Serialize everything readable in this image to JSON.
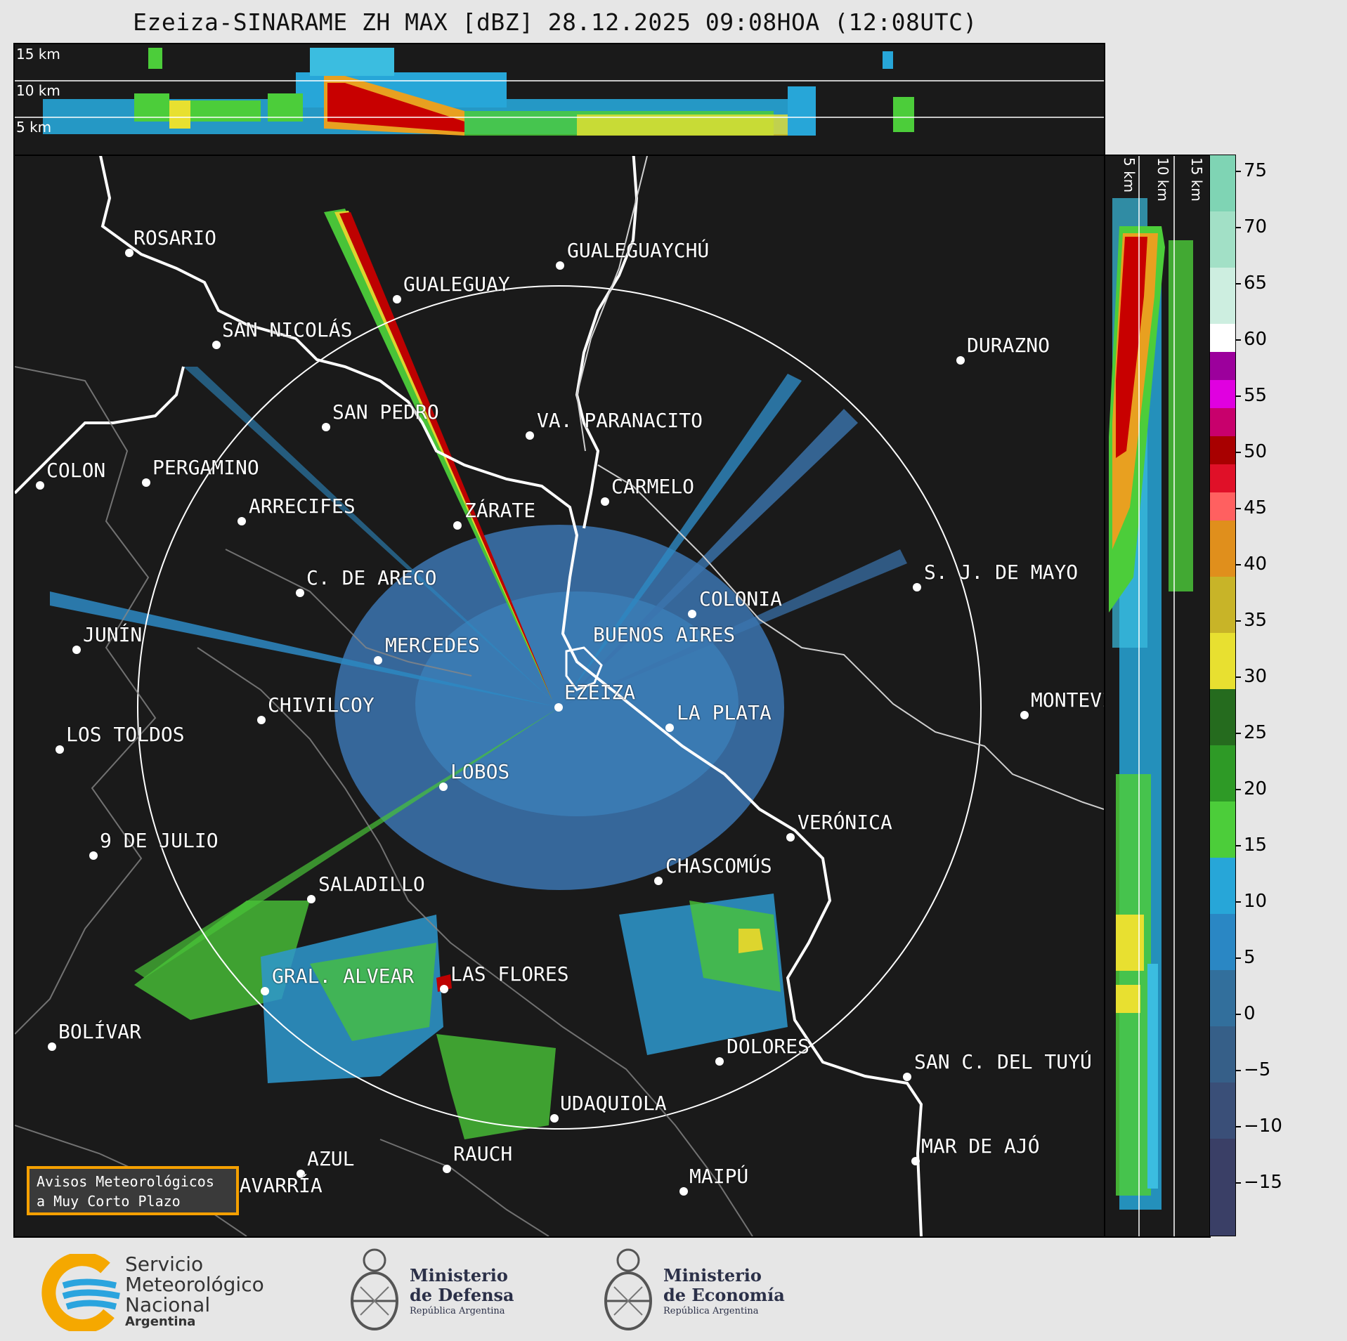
{
  "title": "Ezeiza-SINARAME ZH MAX [dBZ] 28.12.2025 09:08HOA (12:08UTC)",
  "height_labels": {
    "top": [
      "15 km",
      "10 km",
      "5 km"
    ],
    "side": [
      "5 km",
      "10 km",
      "15 km"
    ]
  },
  "colorbar": {
    "ticks": [
      "75",
      "70",
      "65",
      "60",
      "55",
      "50",
      "45",
      "40",
      "35",
      "30",
      "25",
      "20",
      "15",
      "10",
      "5",
      "0",
      "−5",
      "−10",
      "−15"
    ]
  },
  "cities": [
    {
      "name": "ROSARIO"
    },
    {
      "name": "GUALEGUAYCHÚ"
    },
    {
      "name": "GUALEGUAY"
    },
    {
      "name": "SAN NICOLÁS"
    },
    {
      "name": "DURAZNO"
    },
    {
      "name": "SAN PEDRO"
    },
    {
      "name": "VA. PARANACITO"
    },
    {
      "name": "COLON"
    },
    {
      "name": "PERGAMINO"
    },
    {
      "name": "CARMELO"
    },
    {
      "name": "ARRECIFES"
    },
    {
      "name": "ZÁRATE"
    },
    {
      "name": "S. J. DE MAYO"
    },
    {
      "name": "C. DE ARECO"
    },
    {
      "name": "COLONIA"
    },
    {
      "name": "JUNÍN"
    },
    {
      "name": "BUENOS AIRES"
    },
    {
      "name": "MERCEDES"
    },
    {
      "name": "MONTEVIDEO"
    },
    {
      "name": "EZEIZA"
    },
    {
      "name": "CHIVILCOY"
    },
    {
      "name": "LA PLATA"
    },
    {
      "name": "LOS TOLDOS"
    },
    {
      "name": "LOBOS"
    },
    {
      "name": "VERÓNICA"
    },
    {
      "name": "9 DE JULIO"
    },
    {
      "name": "CHASCOMÚS"
    },
    {
      "name": "SALADILLO"
    },
    {
      "name": "GRAL. ALVEAR"
    },
    {
      "name": "LAS FLORES"
    },
    {
      "name": "BOLÍVAR"
    },
    {
      "name": "DOLORES"
    },
    {
      "name": "SAN C. DEL TUYÚ"
    },
    {
      "name": "UDAQUIOLA"
    },
    {
      "name": "MAR DE AJÓ"
    },
    {
      "name": "AZUL"
    },
    {
      "name": "RAUCH"
    },
    {
      "name": "OLAVARRÍA"
    },
    {
      "name": "MAIPÚ"
    }
  ],
  "warning": {
    "line1": "Avisos Meteorológicos",
    "line2": "a Muy Corto Plazo"
  },
  "logos": {
    "smn": {
      "line1": "Servicio",
      "line2": "Meteorológico",
      "line3": "Nacional",
      "line4": "Argentina"
    },
    "defensa": {
      "line1": "Ministerio",
      "line2": "de Defensa",
      "line3": "República Argentina"
    },
    "economia": {
      "line1": "Ministerio",
      "line2": "de Economía",
      "line3": "República Argentina"
    }
  },
  "colors": {
    "background": "#1a1a1a",
    "range_ring": "#ffffff",
    "weak_echo": "#3d7ab8",
    "light": "#27a6d8",
    "moderate": "#4ccd3a",
    "strong": "#e8e030",
    "heavy": "#c80000",
    "accent": "#f5a000"
  }
}
